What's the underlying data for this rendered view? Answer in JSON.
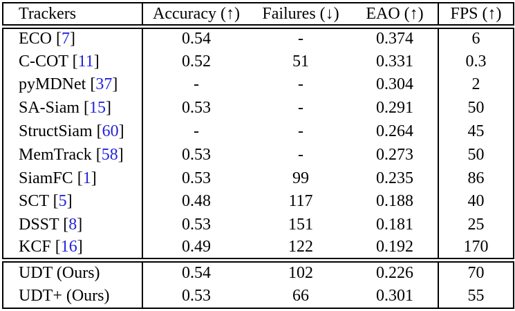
{
  "colors": {
    "background": "#ffffff",
    "text": "#000000",
    "border": "#000000",
    "citation": "#2222dd"
  },
  "table": {
    "headers": [
      {
        "key": "trackers",
        "label": "Trackers"
      },
      {
        "key": "accuracy",
        "label": "Accuracy (↑)"
      },
      {
        "key": "failures",
        "label": "Failures (↓)"
      },
      {
        "key": "eao",
        "label": "EAO (↑)"
      },
      {
        "key": "fps",
        "label": "FPS (↑)"
      }
    ],
    "rows": [
      {
        "name": "ECO",
        "cite": "7",
        "accuracy": "0.54",
        "failures": "-",
        "eao": "0.374",
        "fps": "6"
      },
      {
        "name": "C-COT",
        "cite": "11",
        "accuracy": "0.52",
        "failures": "51",
        "eao": "0.331",
        "fps": "0.3"
      },
      {
        "name": "pyMDNet",
        "cite": "37",
        "accuracy": "-",
        "failures": "-",
        "eao": "0.304",
        "fps": "2"
      },
      {
        "name": "SA-Siam",
        "cite": "15",
        "accuracy": "0.53",
        "failures": "-",
        "eao": "0.291",
        "fps": "50"
      },
      {
        "name": "StructSiam",
        "cite": "60",
        "accuracy": "-",
        "failures": "-",
        "eao": "0.264",
        "fps": "45"
      },
      {
        "name": "MemTrack",
        "cite": "58",
        "accuracy": "0.53",
        "failures": "-",
        "eao": "0.273",
        "fps": "50"
      },
      {
        "name": "SiamFC",
        "cite": "1",
        "accuracy": "0.53",
        "failures": "99",
        "eao": "0.235",
        "fps": "86"
      },
      {
        "name": "SCT",
        "cite": "5",
        "accuracy": "0.48",
        "failures": "117",
        "eao": "0.188",
        "fps": "40"
      },
      {
        "name": "DSST",
        "cite": "8",
        "accuracy": "0.53",
        "failures": "151",
        "eao": "0.181",
        "fps": "25"
      },
      {
        "name": "KCF",
        "cite": "16",
        "accuracy": "0.49",
        "failures": "122",
        "eao": "0.192",
        "fps": "170"
      }
    ],
    "ours_rows": [
      {
        "name": "UDT (Ours)",
        "cite": "",
        "accuracy": "0.54",
        "failures": "102",
        "eao": "0.226",
        "fps": "70"
      },
      {
        "name": "UDT+ (Ours)",
        "cite": "",
        "accuracy": "0.53",
        "failures": "66",
        "eao": "0.301",
        "fps": "55"
      }
    ]
  }
}
